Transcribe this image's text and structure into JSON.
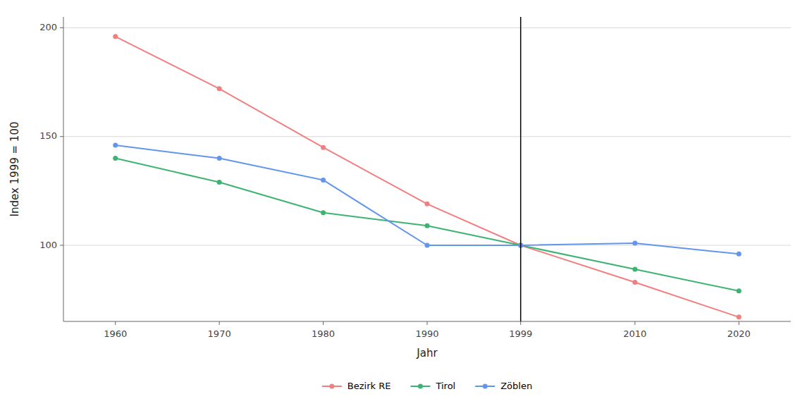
{
  "chart_data": {
    "type": "line",
    "xlabel": "Jahr",
    "ylabel": "Index 1999 = 100",
    "x": [
      1960,
      1970,
      1980,
      1990,
      1999,
      2010,
      2020
    ],
    "series": [
      {
        "name": "Bezirk RE",
        "color": "#F08080",
        "marker": "circle",
        "line_style": "solid",
        "values": [
          196,
          172,
          145,
          119,
          100,
          83,
          67
        ]
      },
      {
        "name": "Tirol",
        "color": "#3CB371",
        "marker": "circle",
        "line_style": "solid",
        "values": [
          140,
          129,
          115,
          109,
          100,
          89,
          79
        ]
      },
      {
        "name": "Zöblen",
        "color": "#6495ED",
        "marker": "circle",
        "line_style": "solid",
        "values": [
          146,
          140,
          130,
          100,
          100,
          101,
          96
        ]
      }
    ],
    "vlines": [
      {
        "x": 1999,
        "color": "#000000"
      }
    ],
    "xlim": [
      1955,
      2025
    ],
    "xticks": [
      1960,
      1970,
      1980,
      1990,
      1999,
      2010,
      2020
    ],
    "ylim": [
      65,
      205
    ],
    "yticks": [
      100,
      150,
      200
    ],
    "grid": true,
    "legend": "bottom"
  }
}
